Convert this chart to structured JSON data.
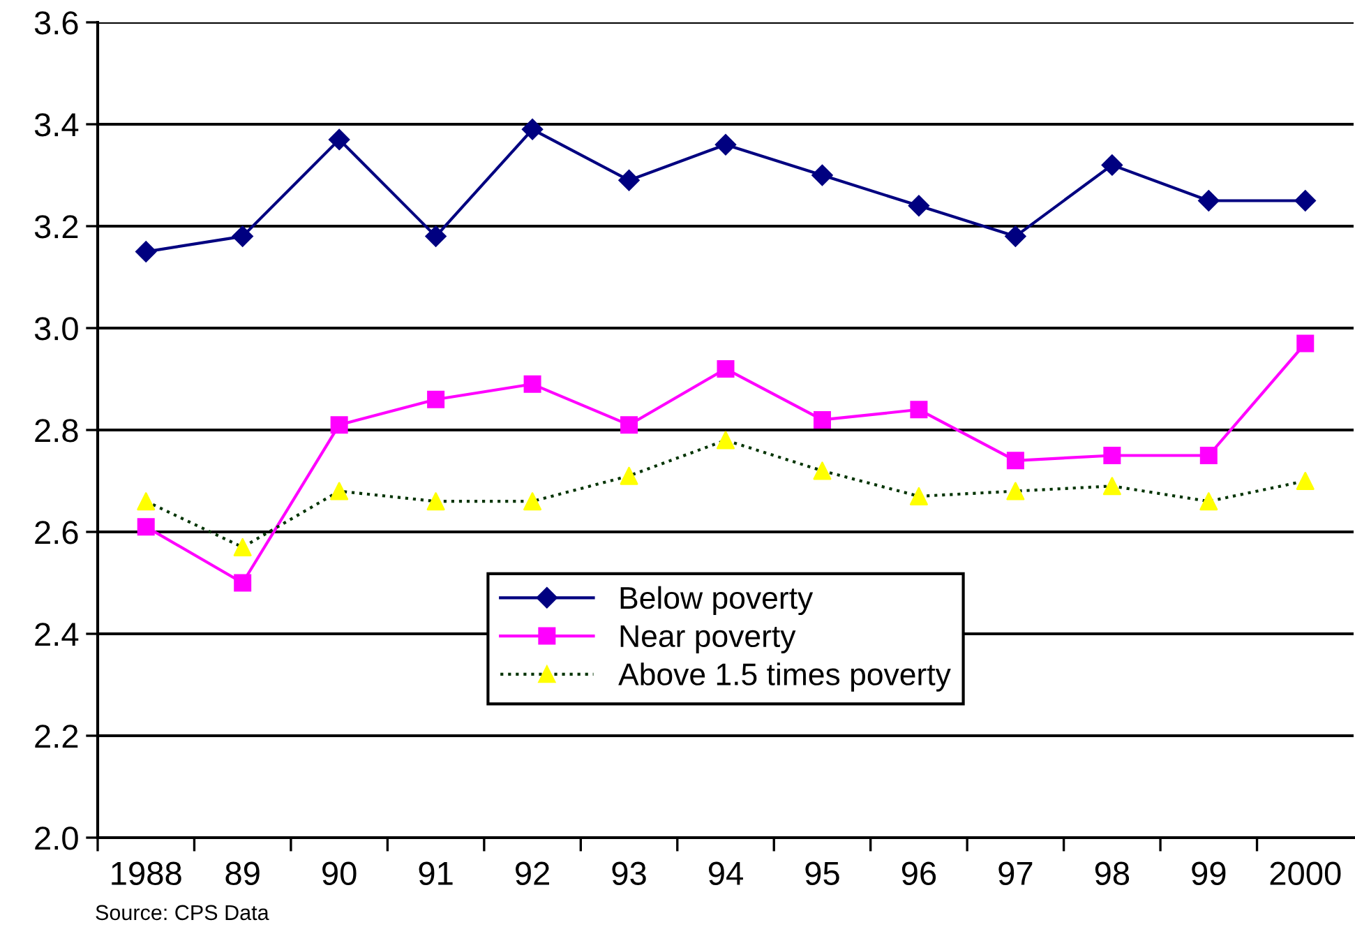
{
  "chart_data": {
    "type": "line",
    "categories": [
      "1988",
      "89",
      "90",
      "91",
      "92",
      "93",
      "94",
      "95",
      "96",
      "97",
      "98",
      "99",
      "2000"
    ],
    "series": [
      {
        "name": "Below poverty",
        "color": "#000080",
        "marker": "diamond",
        "line_style": "solid",
        "values": [
          3.15,
          3.18,
          3.37,
          3.18,
          3.39,
          3.29,
          3.36,
          3.3,
          3.24,
          3.18,
          3.32,
          3.25,
          3.25
        ]
      },
      {
        "name": "Near poverty",
        "color": "#ff00ff",
        "marker": "square",
        "line_style": "solid",
        "values": [
          2.61,
          2.5,
          2.81,
          2.86,
          2.89,
          2.81,
          2.92,
          2.82,
          2.84,
          2.74,
          2.75,
          2.75,
          2.97
        ]
      },
      {
        "name": "Above 1.5 times poverty",
        "color": "#003300",
        "colors": [
          "#ffff00",
          "#ffff00",
          "#ffff00",
          "#ffff00",
          "#ffff00",
          "#ffff00",
          "#ffff00",
          "#ffff00",
          "#ffff00",
          "#ffff00",
          "#ffff00",
          "#ffff00",
          "#ffff00"
        ],
        "marker": "triangle",
        "line_style": "dotted",
        "values": [
          2.66,
          2.57,
          2.68,
          2.66,
          2.66,
          2.71,
          2.78,
          2.72,
          2.67,
          2.68,
          2.69,
          2.66,
          2.7
        ]
      }
    ],
    "ylim": [
      2.0,
      3.6
    ],
    "yticks": [
      {
        "value": 2.0,
        "label": "2.0"
      },
      {
        "value": 2.2,
        "label": "2.2"
      },
      {
        "value": 2.4,
        "label": "2.4"
      },
      {
        "value": 2.6,
        "label": "2.6"
      },
      {
        "value": 2.8,
        "label": "2.8"
      },
      {
        "value": 3.0,
        "label": "3.0"
      },
      {
        "value": 3.2,
        "label": "3.2"
      },
      {
        "value": 3.4,
        "label": "3.4"
      },
      {
        "value": 3.6,
        "label": "3.6"
      }
    ],
    "grid": "y",
    "legend": "bottom",
    "annotations": [
      "Source: CPS Data"
    ]
  }
}
